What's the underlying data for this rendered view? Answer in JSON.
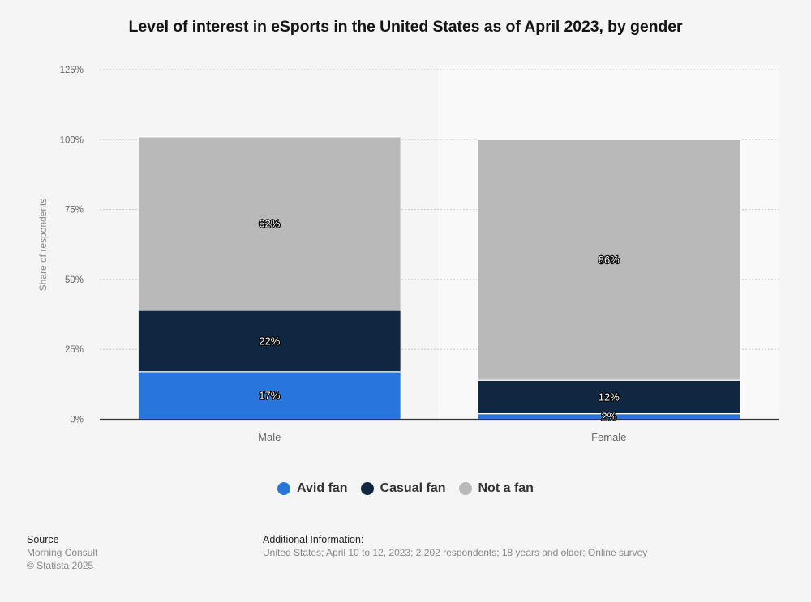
{
  "chart_data": {
    "type": "bar",
    "stacked": true,
    "title": "Level of interest in eSports in the United States as of April 2023, by gender",
    "xlabel": "",
    "ylabel": "Share of respondents",
    "ylim": [
      0,
      125
    ],
    "yticks": [
      0,
      25,
      50,
      75,
      100,
      125
    ],
    "ytick_labels": [
      "0%",
      "25%",
      "50%",
      "75%",
      "100%",
      "125%"
    ],
    "grid": true,
    "legend_position": "bottom-center",
    "categories": [
      "Male",
      "Female"
    ],
    "series": [
      {
        "name": "Avid fan",
        "color": "#2876dd",
        "values": [
          17,
          2
        ],
        "labels": [
          "17%",
          "2%"
        ]
      },
      {
        "name": "Casual fan",
        "color": "#0f2740",
        "values": [
          22,
          12
        ],
        "labels": [
          "22%",
          "12%"
        ]
      },
      {
        "name": "Not a fan",
        "color": "#b9b9b9",
        "values": [
          62,
          86
        ],
        "labels": [
          "62%",
          "86%"
        ]
      }
    ]
  },
  "footer": {
    "source_heading": "Source",
    "source_name": "Morning Consult",
    "copyright": "© Statista 2025",
    "additional_heading": "Additional Information:",
    "additional_text": "United States; April 10 to 12, 2023; 2,202 respondents; 18 years and older; Online survey"
  }
}
